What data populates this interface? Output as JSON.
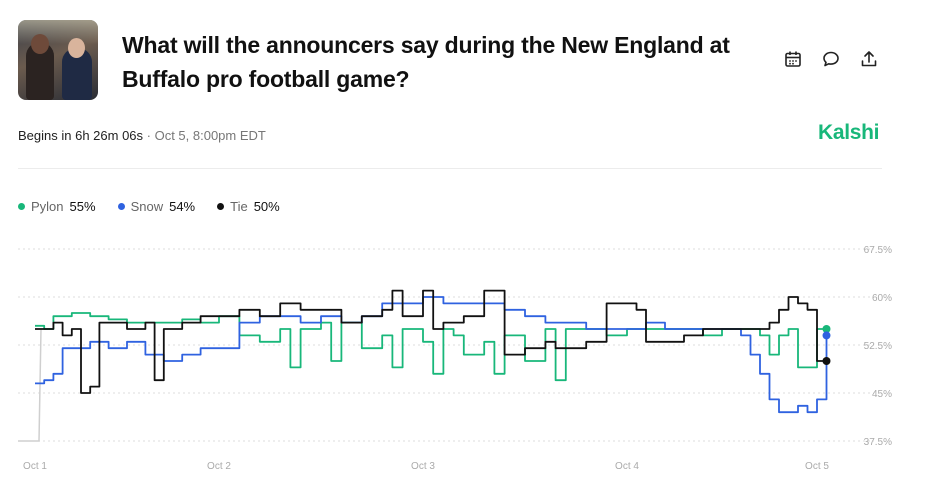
{
  "header": {
    "title": "What will the announcers say during the New England at Buffalo pro football game?",
    "begins": "Begins in 6h 26m 06s",
    "date": " · Oct 5, 8:00pm EDT",
    "brand": "Kalshi"
  },
  "icons": [
    "calendar-icon",
    "comment-icon",
    "share-icon"
  ],
  "legend": [
    {
      "name": "Pylon",
      "pct": "55%",
      "color": "#18b77a"
    },
    {
      "name": "Snow",
      "pct": "54%",
      "color": "#2f62e0"
    },
    {
      "name": "Tie",
      "pct": "50%",
      "color": "#111111"
    }
  ],
  "chart_data": {
    "type": "line",
    "ylim": [
      37.5,
      67.5
    ],
    "yticks": [
      "67.5%",
      "60%",
      "52.5%",
      "45%",
      "37.5%"
    ],
    "ytick_values": [
      67.5,
      60,
      52.5,
      45,
      37.5
    ],
    "xticks": [
      "Oct 1",
      "Oct 2",
      "Oct 3",
      "Oct 4",
      "Oct 5"
    ],
    "xtick_values": [
      0,
      1,
      2,
      3,
      4
    ],
    "grid": true,
    "legend_position": "top-left",
    "series": [
      {
        "name": "Pylon",
        "color": "#18b77a",
        "end_value": 55,
        "x": [
          0,
          0.05,
          0.1,
          0.2,
          0.3,
          0.4,
          0.5,
          0.6,
          0.7,
          0.8,
          0.9,
          1.0,
          1.1,
          1.2,
          1.3,
          1.35,
          1.4,
          1.5,
          1.55,
          1.6,
          1.7,
          1.8,
          1.85,
          1.9,
          2.0,
          2.05,
          2.1,
          2.15,
          2.2,
          2.3,
          2.35,
          2.4,
          2.5,
          2.6,
          2.65,
          2.7,
          2.8,
          2.9,
          3.0,
          3.1,
          3.2,
          3.3,
          3.4,
          3.5,
          3.6,
          3.7,
          3.75,
          3.8,
          3.85,
          3.9,
          4.0,
          4.05
        ],
        "y": [
          55.5,
          55,
          57,
          57.5,
          57,
          56.5,
          56,
          56,
          56,
          56.5,
          56,
          57,
          54,
          53,
          55,
          49,
          55,
          56,
          50,
          56,
          52,
          54,
          49,
          55,
          53,
          48,
          55,
          54,
          51,
          53,
          48,
          54,
          50,
          55,
          47,
          55,
          55,
          54,
          55,
          55,
          55,
          55,
          54,
          55,
          55,
          54,
          51,
          54,
          55,
          49,
          55,
          55
        ]
      },
      {
        "name": "Snow",
        "color": "#2f62e0",
        "end_value": 54,
        "x": [
          0,
          0.05,
          0.1,
          0.15,
          0.2,
          0.3,
          0.4,
          0.5,
          0.6,
          0.7,
          0.8,
          0.9,
          1.0,
          1.1,
          1.2,
          1.3,
          1.4,
          1.5,
          1.6,
          1.7,
          1.8,
          1.9,
          2.0,
          2.1,
          2.2,
          2.3,
          2.4,
          2.5,
          2.6,
          2.7,
          2.8,
          2.9,
          3.0,
          3.1,
          3.2,
          3.3,
          3.4,
          3.5,
          3.6,
          3.65,
          3.7,
          3.75,
          3.8,
          3.9,
          3.95,
          4.0,
          4.05
        ],
        "y": [
          46.5,
          47,
          48,
          52,
          52,
          53,
          52,
          53,
          51,
          50,
          51,
          52,
          52,
          56,
          57,
          57,
          56,
          57,
          56,
          57,
          59,
          59,
          60,
          59,
          59,
          59,
          58,
          57,
          56,
          56,
          55,
          55,
          55,
          56,
          55,
          55,
          55,
          55,
          54,
          51,
          48,
          44,
          42,
          43,
          42,
          44,
          54
        ]
      },
      {
        "name": "Tie",
        "color": "#111111",
        "end_value": 50,
        "x": [
          0,
          0.05,
          0.1,
          0.15,
          0.2,
          0.25,
          0.3,
          0.35,
          0.4,
          0.5,
          0.6,
          0.65,
          0.7,
          0.8,
          0.9,
          1.0,
          1.1,
          1.2,
          1.3,
          1.4,
          1.5,
          1.6,
          1.7,
          1.8,
          1.85,
          1.9,
          2.0,
          2.05,
          2.1,
          2.2,
          2.3,
          2.35,
          2.4,
          2.5,
          2.6,
          2.65,
          2.7,
          2.8,
          2.9,
          3.0,
          3.05,
          3.1,
          3.2,
          3.3,
          3.4,
          3.5,
          3.6,
          3.7,
          3.75,
          3.8,
          3.85,
          3.9,
          3.95,
          4.0,
          4.05
        ],
        "y": [
          55,
          55,
          56,
          54,
          55,
          45,
          46,
          56,
          56,
          55,
          56,
          47,
          55,
          56,
          57,
          57,
          58,
          57,
          59,
          58,
          58,
          56,
          57,
          58,
          61,
          57,
          61,
          55,
          56,
          57,
          61,
          61,
          51,
          52,
          53,
          52,
          52,
          53,
          59,
          59,
          58,
          53,
          53,
          54,
          55,
          55,
          55,
          55,
          56,
          58,
          60,
          59,
          58,
          50,
          50
        ]
      }
    ]
  }
}
